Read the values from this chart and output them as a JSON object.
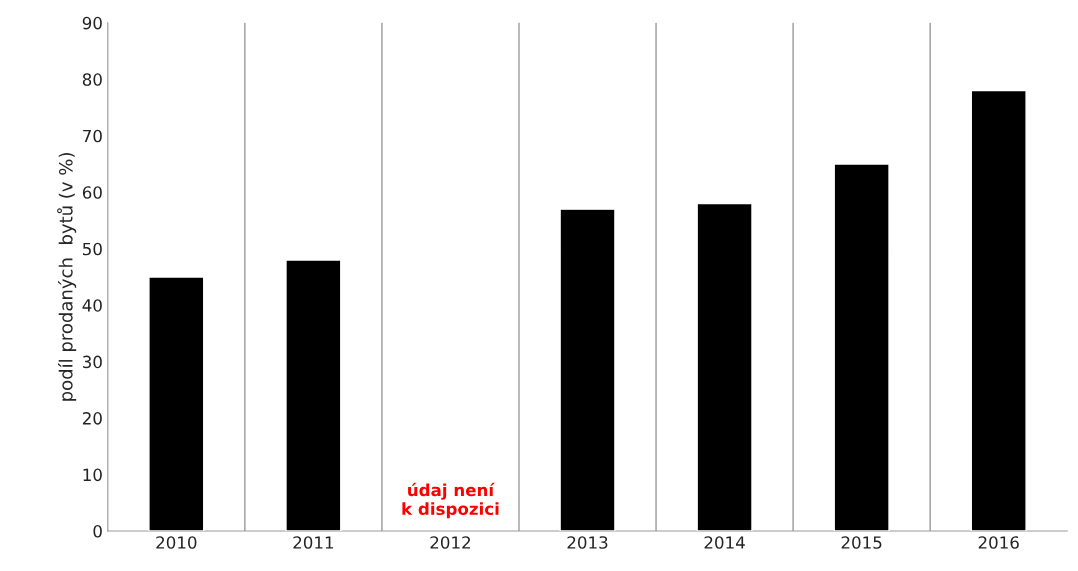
{
  "chart_data": {
    "type": "bar",
    "ylabel": "podíl prodaných  bytů (v %)",
    "categories": [
      "2010",
      "2011",
      "2012",
      "2013",
      "2014",
      "2015",
      "2016"
    ],
    "values": [
      45,
      48,
      null,
      57,
      58,
      65,
      78
    ],
    "color": "#000000",
    "ylim": [
      0,
      90
    ],
    "yticks": [
      0,
      10,
      20,
      30,
      40,
      50,
      60,
      70,
      80,
      90
    ],
    "grid": "x",
    "annotations": [
      "údaj není\nk dispozici"
    ]
  }
}
